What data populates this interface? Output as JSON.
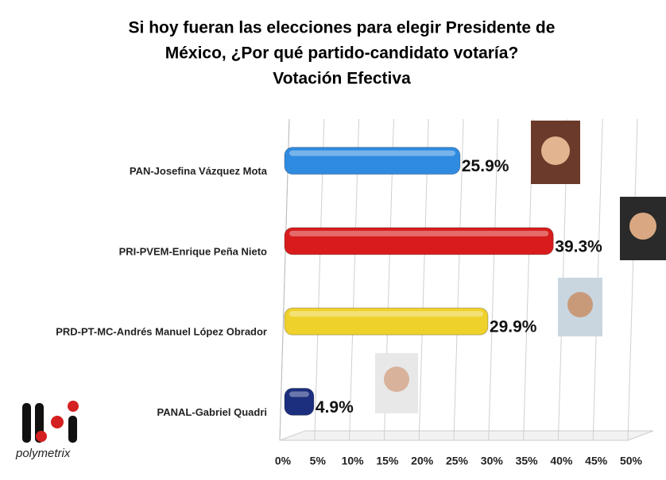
{
  "chart_data": {
    "type": "bar",
    "orientation": "horizontal",
    "title": [
      "Si hoy fueran las elecciones para elegir Presidente de",
      "México, ¿Por qué partido-candidato votaría?",
      "Votación Efectiva"
    ],
    "categories": [
      "PAN-Josefina Vázquez Mota",
      "PRI-PVEM-Enrique Peña Nieto",
      "PRD-PT-MC-Andrés Manuel López Obrador",
      "PANAL-Gabriel Quadri"
    ],
    "values": [
      25.9,
      39.3,
      29.9,
      4.9
    ],
    "value_labels": [
      "25.9%",
      "39.3%",
      "29.9%",
      "4.9%"
    ],
    "colors": [
      "#2f8be0",
      "#d81c1c",
      "#efd12c",
      "#1c2f7e"
    ],
    "xlim": [
      0,
      50
    ],
    "xticks": [
      {
        "value": 0,
        "label": "0%"
      },
      {
        "value": 5,
        "label": "5%"
      },
      {
        "value": 10,
        "label": "10%"
      },
      {
        "value": 15,
        "label": "15%"
      },
      {
        "value": 20,
        "label": "20%"
      },
      {
        "value": 25,
        "label": "25%"
      },
      {
        "value": 30,
        "label": "30%"
      },
      {
        "value": 35,
        "label": "35%"
      },
      {
        "value": 40,
        "label": "40%"
      },
      {
        "value": 45,
        "label": "45%"
      },
      {
        "value": 50,
        "label": "50%"
      }
    ],
    "grid": true
  },
  "logo": "polymetrix"
}
